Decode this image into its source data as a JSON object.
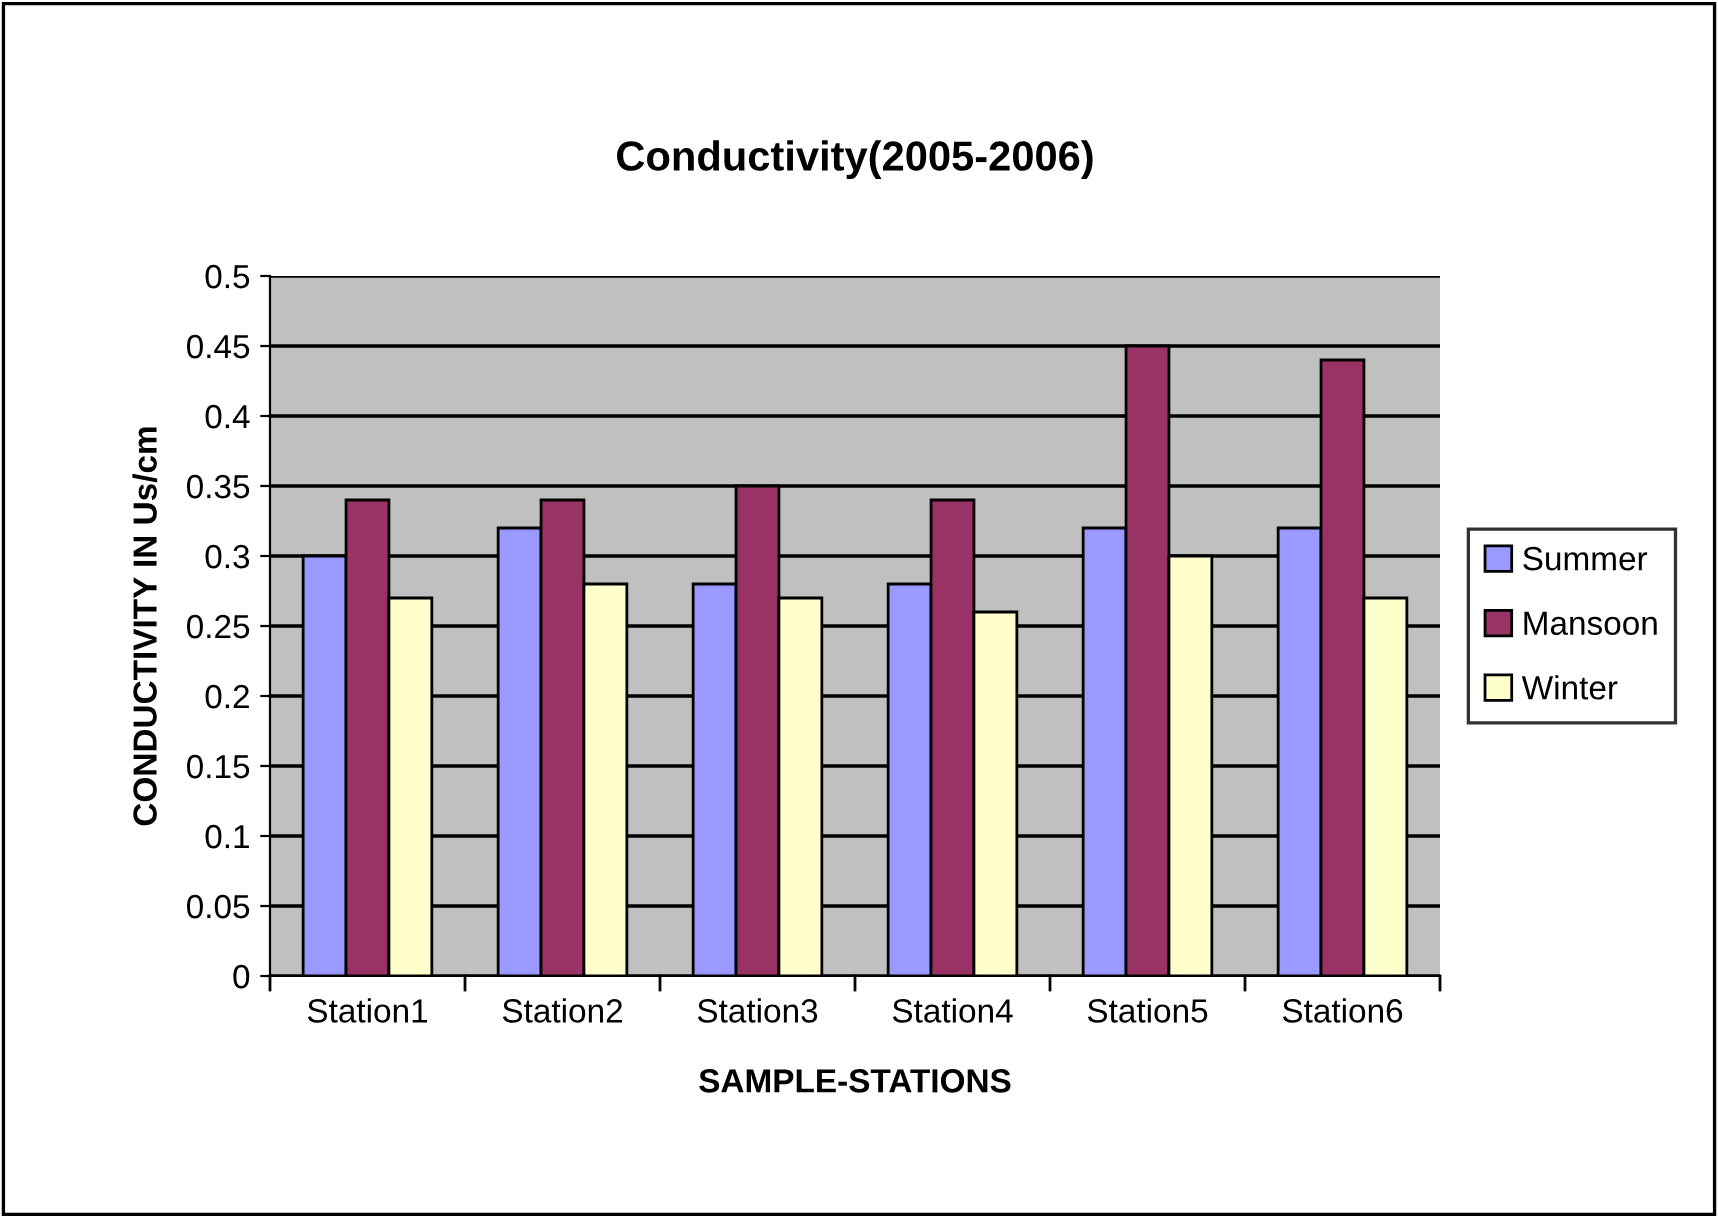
{
  "chart_data": {
    "type": "bar",
    "title": "Conductivity(2005-2006)",
    "xlabel": "SAMPLE-STATIONS",
    "ylabel": "CONDUCTIVITY IN Us/cm",
    "categories": [
      "Station1",
      "Station2",
      "Station3",
      "Station4",
      "Station5",
      "Station6"
    ],
    "series": [
      {
        "name": "Summer",
        "color": "#9999ff",
        "values": [
          0.3,
          0.32,
          0.28,
          0.28,
          0.32,
          0.32
        ]
      },
      {
        "name": "Mansoon",
        "color": "#993366",
        "values": [
          0.34,
          0.34,
          0.35,
          0.34,
          0.45,
          0.44
        ]
      },
      {
        "name": "Winter",
        "color": "#ffffcc",
        "values": [
          0.27,
          0.28,
          0.27,
          0.26,
          0.3,
          0.27
        ]
      }
    ],
    "ylim": [
      0,
      0.5
    ],
    "yticks": [
      0,
      0.05,
      0.1,
      0.15,
      0.2,
      0.25,
      0.3,
      0.35,
      0.4,
      0.45,
      0.5
    ],
    "grid": "y",
    "legend": "right"
  }
}
